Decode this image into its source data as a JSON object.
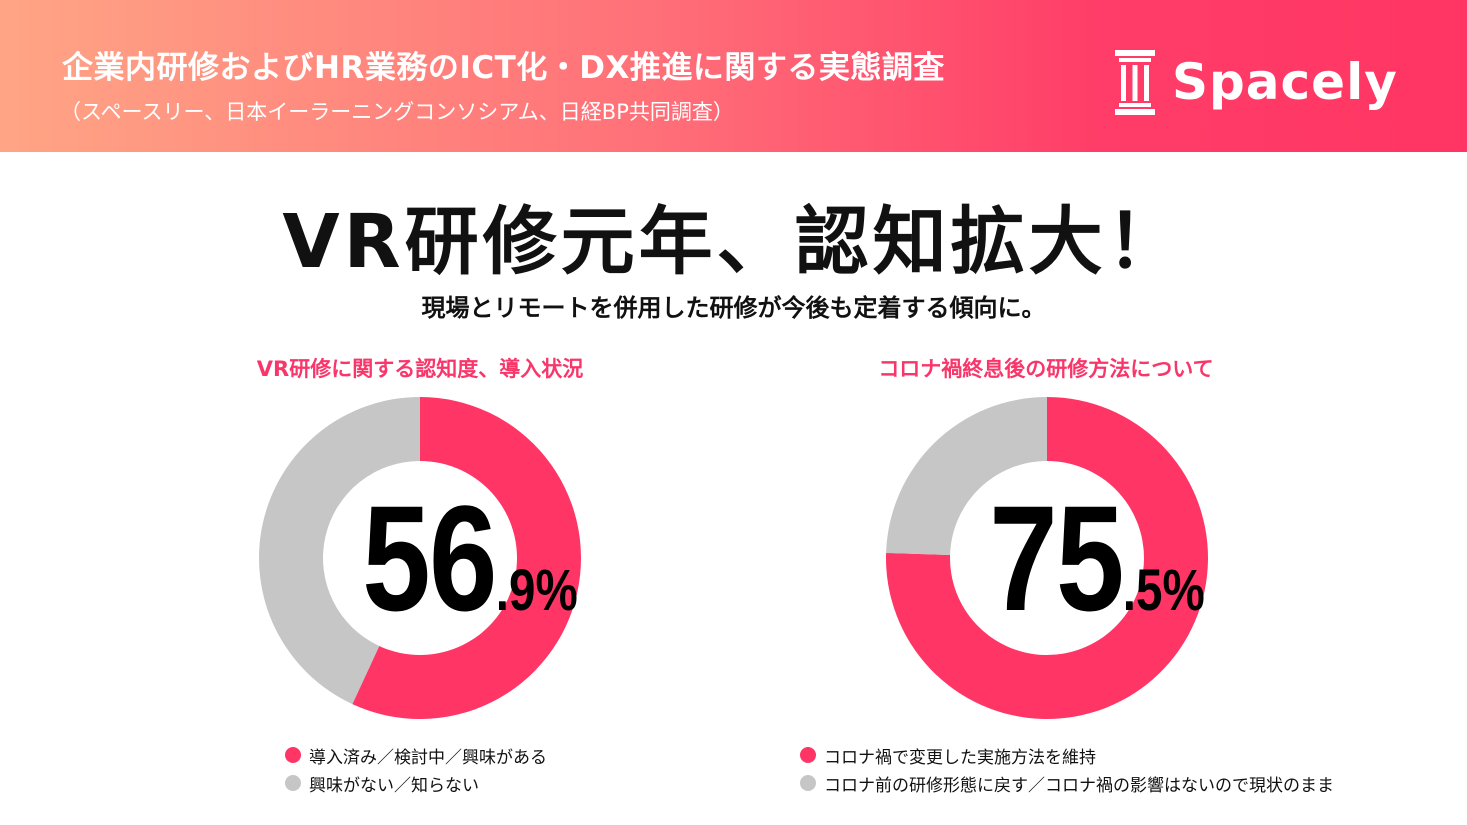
{
  "header": {
    "title": "企業内研修およびHR業務のICT化・DX推進に関する実態調査",
    "subtitle": "（スペースリー、日本イーラーニングコンソシアム、日経BP共同調査）",
    "logo_text": "Spacely",
    "logo_icon": "pillar-icon"
  },
  "headline": "VR研修元年、認知拡大！",
  "subheadline": "現場とリモートを併用した研修が今後も定着する傾向に。",
  "colors": {
    "accent": "#ff3566",
    "gray": "#c6c6c6"
  },
  "chart_data": [
    {
      "type": "pie",
      "title": "VR研修に関する認知度、導入状況",
      "center_label_int": "56",
      "center_label_dec": ".9%",
      "slices": [
        {
          "label": "導入済み／検討中／興味がある",
          "value": 56.9,
          "color": "#ff3566"
        },
        {
          "label": "興味がない／知らない",
          "value": 43.1,
          "color": "#c6c6c6"
        }
      ]
    },
    {
      "type": "pie",
      "title": "コロナ禍終息後の研修方法について",
      "center_label_int": "75",
      "center_label_dec": ".5%",
      "slices": [
        {
          "label": "コロナ禍で変更した実施方法を維持",
          "value": 75.5,
          "color": "#ff3566"
        },
        {
          "label": "コロナ前の研修形態に戻す／コロナ禍の影響はないので現状のまま",
          "value": 24.5,
          "color": "#c6c6c6"
        }
      ]
    }
  ]
}
